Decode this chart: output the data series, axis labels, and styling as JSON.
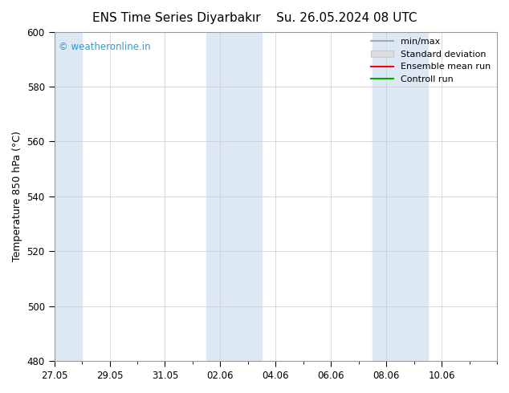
{
  "title_left": "ENS Time Series Diyarbakır",
  "title_right": "Su. 26.05.2024 08 UTC",
  "ylabel": "Temperature 850 hPa (°C)",
  "ylim": [
    480,
    600
  ],
  "yticks": [
    480,
    500,
    520,
    540,
    560,
    580,
    600
  ],
  "x_start": "2024-05-27",
  "x_end": "2024-06-12",
  "xtick_labels": [
    "27.05",
    "29.05",
    "31.05",
    "02.06",
    "04.06",
    "06.06",
    "08.06",
    "10.06"
  ],
  "xtick_days_offset": [
    0,
    2,
    4,
    6,
    8,
    10,
    12,
    14
  ],
  "shaded_bands": [
    {
      "start": 0,
      "end": 0.5,
      "color": "#dce9f5"
    },
    {
      "start": 5.5,
      "end": 7.5,
      "color": "#dce9f5"
    },
    {
      "start": 11.5,
      "end": 13.5,
      "color": "#dce9f5"
    }
  ],
  "watermark": "© weatheronline.in",
  "watermark_color": "#3399cc",
  "legend_entries": [
    {
      "label": "min/max",
      "color": "#aaaaaa",
      "lw": 1.5,
      "ls": "-"
    },
    {
      "label": "Standard deviation",
      "color": "#cccccc",
      "lw": 6,
      "ls": "-"
    },
    {
      "label": "Ensemble mean run",
      "color": "#ff0000",
      "lw": 1.5,
      "ls": "-"
    },
    {
      "label": "Controll run",
      "color": "#00aa00",
      "lw": 1.5,
      "ls": "-"
    }
  ],
  "bg_color": "#ffffff",
  "plot_bg_color": "#ffffff",
  "grid_color": "#cccccc",
  "spine_color": "#999999",
  "title_fontsize": 11,
  "axis_label_fontsize": 9,
  "tick_fontsize": 8.5,
  "legend_fontsize": 8
}
